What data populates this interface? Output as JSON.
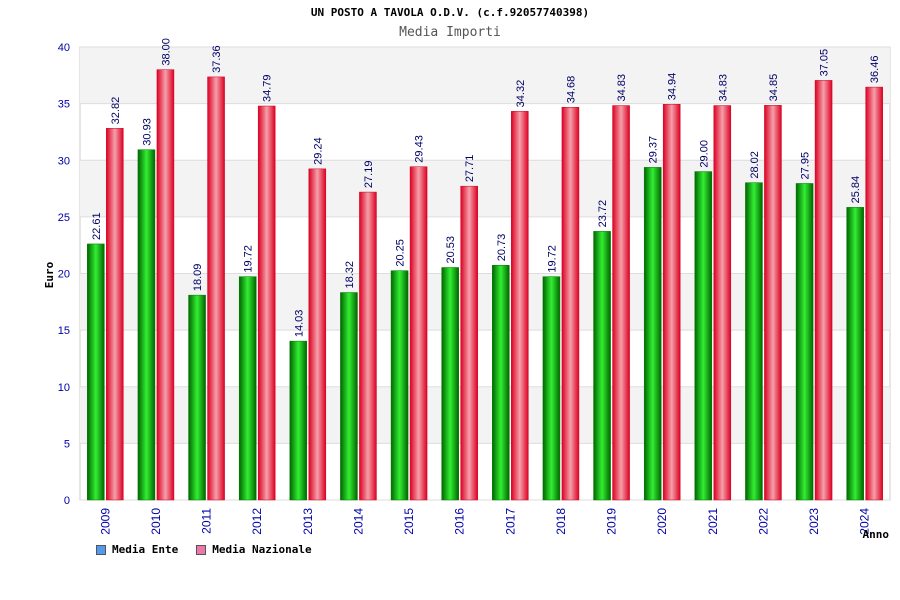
{
  "colors": {
    "ente": "#00b000",
    "nazionale": "#e6002a",
    "legend_ente": "#5599ee",
    "legend_nazionale": "#ee77aa",
    "axis_text": "#0000aa"
  },
  "chart_data": {
    "type": "bar",
    "title": "UN POSTO A TAVOLA O.D.V. (c.f.92057740398)",
    "subtitle": "Media Importi",
    "ylabel": "Euro",
    "xlabel": "Anno",
    "ylim": [
      0,
      40
    ],
    "yticks": [
      "0",
      "5",
      "10",
      "15",
      "20",
      "25",
      "30",
      "35",
      "40"
    ],
    "categories": [
      "2009",
      "2010",
      "2011",
      "2012",
      "2013",
      "2014",
      "2015",
      "2016",
      "2017",
      "2018",
      "2019",
      "2020",
      "2021",
      "2022",
      "2023",
      "2024"
    ],
    "series": [
      {
        "name": "Media Ente",
        "values": [
          22.61,
          30.93,
          18.09,
          19.72,
          14.03,
          18.32,
          20.25,
          20.53,
          20.73,
          19.72,
          23.72,
          29.37,
          29.0,
          28.02,
          27.95,
          25.84
        ],
        "labels": [
          "22.61",
          "30.93",
          "18.09",
          "19.72",
          "14.03",
          "18.32",
          "20.25",
          "20.53",
          "20.73",
          "19.72",
          "23.72",
          "29.37",
          "29.00",
          "28.02",
          "27.95",
          "25.84"
        ]
      },
      {
        "name": "Media Nazionale",
        "values": [
          32.82,
          38.0,
          37.36,
          34.79,
          29.24,
          27.19,
          29.43,
          27.71,
          34.32,
          34.68,
          34.83,
          34.94,
          34.83,
          34.85,
          37.05,
          36.46
        ],
        "labels": [
          "32.82",
          "38.00",
          "37.36",
          "34.79",
          "29.24",
          "27.19",
          "29.43",
          "27.71",
          "34.32",
          "34.68",
          "34.83",
          "34.94",
          "34.83",
          "34.85",
          "37.05",
          "36.46"
        ]
      }
    ],
    "legend": [
      "Media Ente",
      "Media Nazionale"
    ]
  }
}
